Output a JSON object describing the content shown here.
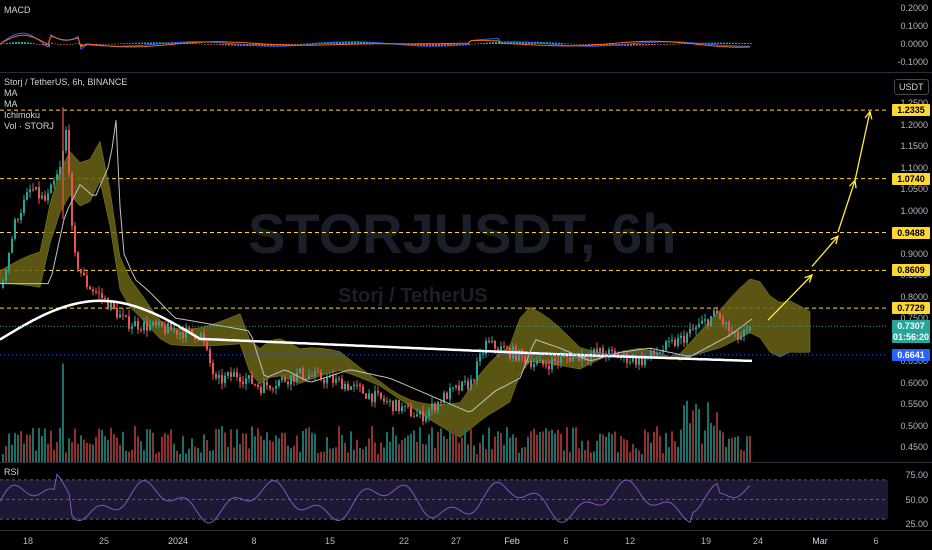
{
  "macd": {
    "title": "MACD",
    "ticks": [
      "0.2000",
      "0.1000",
      "0.0000",
      "-0.1000"
    ]
  },
  "main": {
    "symbol_line": "Storj / TetherUS, 6h, BINANCE",
    "indicators": [
      "MA",
      "MA",
      "Ichimoku",
      "Vol · STORJ"
    ],
    "watermark_big": "STORJUSDT, 6h",
    "watermark_small": "Storj / TetherUS",
    "currency_badge": "USDT",
    "ticks": [
      "1.2500",
      "1.2000",
      "1.1500",
      "1.1000",
      "1.0500",
      "1.0000",
      "0.9500",
      "0.9000",
      "0.8500",
      "0.8000",
      "0.7500",
      "0.7000",
      "0.6500",
      "0.6000",
      "0.5500",
      "0.5000",
      "0.4500"
    ],
    "levels": [
      {
        "label": "1.2335",
        "value": 1.2335
      },
      {
        "label": "1.0740",
        "value": 1.074
      },
      {
        "label": "0.9488",
        "value": 0.9488
      },
      {
        "label": "0.8609",
        "value": 0.8609
      },
      {
        "label": "0.7729",
        "value": 0.7729
      }
    ],
    "last_price": "0.7307",
    "countdown": "01:56:20",
    "ma_value": "0.6641",
    "colors": {
      "up": "#26a69a",
      "down": "#ef5350",
      "cloud": "#6b6416",
      "arrow": "#ffeb3b",
      "level": "#fdd835"
    }
  },
  "rsi": {
    "title": "RSI",
    "ticks": [
      "75.00",
      "50.00",
      "25.00"
    ]
  },
  "xaxis": {
    "labels": [
      "18",
      "25",
      "2024",
      "8",
      "15",
      "22",
      "27",
      "Feb",
      "6",
      "12",
      "19",
      "24",
      "Mar",
      "6"
    ]
  }
}
